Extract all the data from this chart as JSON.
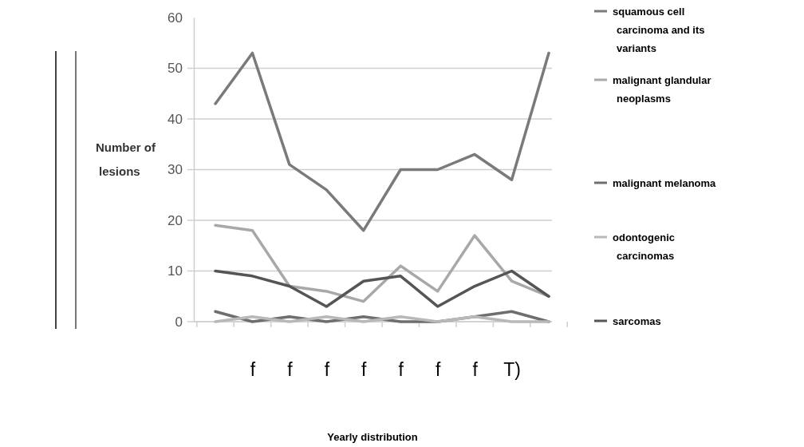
{
  "chart_data": {
    "type": "line",
    "xlabel": "Yearly distribution",
    "ylabel": "Number of lesions",
    "categories": [
      null,
      "f",
      "f",
      "f",
      "f",
      "f",
      "f",
      "f",
      "T)",
      null
    ],
    "ylim": [
      0,
      60
    ],
    "yticks": [
      0,
      10,
      20,
      30,
      40,
      50,
      60
    ],
    "grid": "y",
    "legend": "right",
    "line_style": "solid",
    "series": [
      {
        "name": "squamous cell carcinoma and its variants",
        "color": "#7a7a7a",
        "values": [
          43,
          53,
          31,
          26,
          18,
          30,
          30,
          33,
          28,
          53
        ]
      },
      {
        "name": "malignant glandular neoplasms",
        "color": "#a8a8a8",
        "values": [
          19,
          18,
          7,
          6,
          4,
          11,
          6,
          17,
          8,
          5
        ]
      },
      {
        "name": "malignant melanoma",
        "color": "#6e6e6e",
        "values": [
          2,
          0,
          1,
          0,
          1,
          0,
          0,
          1,
          2,
          0
        ]
      },
      {
        "name": "odontogenic carcinomas",
        "color": "#b8b8b8",
        "values": [
          0,
          1,
          0,
          1,
          0,
          1,
          0,
          1,
          0,
          0
        ]
      },
      {
        "name": "sarcomas",
        "color": "#555555",
        "values": [
          10,
          9,
          7,
          3,
          8,
          9,
          3,
          7,
          10,
          5
        ]
      }
    ]
  }
}
